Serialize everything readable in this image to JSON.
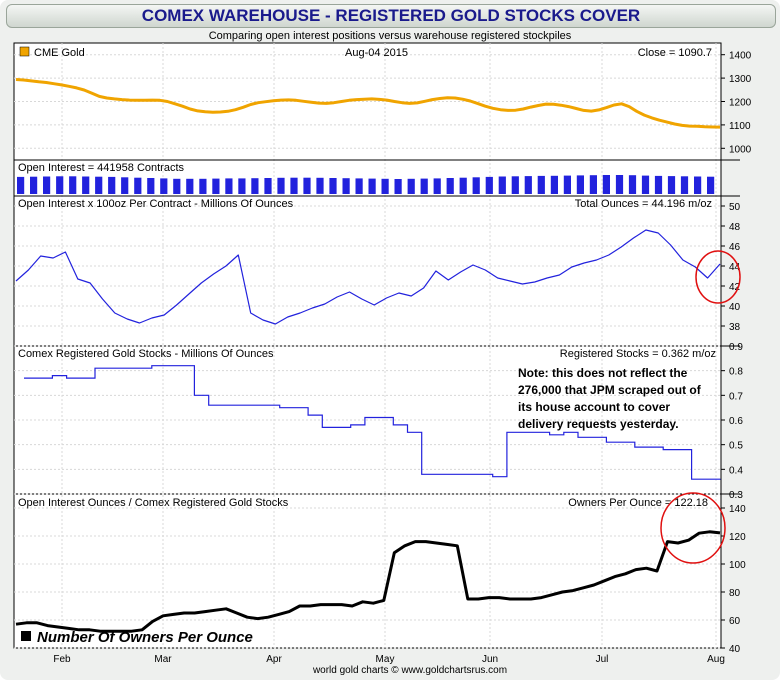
{
  "header": {
    "title": "COMEX WAREHOUSE - REGISTERED GOLD STOCKS COVER",
    "subtitle": "Comparing open interest positions versus warehouse registered stockpiles"
  },
  "footer": {
    "credit": "world gold charts © www.goldchartsrus.com"
  },
  "colors": {
    "gold": "#f0a400",
    "blue": "#2222dd",
    "black": "#000000",
    "annotation_circle": "#e01010"
  },
  "chart_data": [
    {
      "type": "line",
      "legend": "CME Gold",
      "date_label": "Aug-04  2015",
      "close_label": "Close = 1090.7",
      "ylim": [
        950,
        1450
      ],
      "yticks": [
        "1000",
        "1100",
        "1200",
        "1300",
        "1400"
      ],
      "series": [
        {
          "name": "CME Gold",
          "values": [
            1294,
            1292,
            1288,
            1284,
            1281,
            1276,
            1271,
            1265,
            1258,
            1249,
            1236,
            1222,
            1215,
            1211,
            1208,
            1206,
            1205,
            1205,
            1206,
            1205,
            1200,
            1190,
            1180,
            1168,
            1160,
            1156,
            1154,
            1155,
            1158,
            1165,
            1175,
            1187,
            1195,
            1199,
            1203,
            1206,
            1207,
            1205,
            1201,
            1197,
            1193,
            1192,
            1195,
            1200,
            1205,
            1208,
            1210,
            1211,
            1209,
            1206,
            1200,
            1195,
            1192,
            1194,
            1201,
            1208,
            1213,
            1216,
            1215,
            1210,
            1202,
            1191,
            1180,
            1171,
            1165,
            1162,
            1163,
            1168,
            1176,
            1183,
            1189,
            1188,
            1184,
            1178,
            1170,
            1162,
            1159,
            1164,
            1174,
            1185,
            1190,
            1178,
            1158,
            1142,
            1130,
            1120,
            1112,
            1104,
            1098,
            1095,
            1094,
            1092,
            1091,
            1090.7
          ]
        }
      ],
      "x_axis": "shared"
    },
    {
      "type": "bar",
      "label": "Open Interest = 441958 Contracts",
      "value": 441958,
      "bar_levels": [
        0.9,
        0.91,
        0.92,
        0.93,
        0.93,
        0.92,
        0.91,
        0.9,
        0.88,
        0.86,
        0.84,
        0.82,
        0.8,
        0.8,
        0.8,
        0.81,
        0.82,
        0.82,
        0.83,
        0.84,
        0.85,
        0.86,
        0.86,
        0.85,
        0.84,
        0.83,
        0.82,
        0.81,
        0.8,
        0.79,
        0.8,
        0.81,
        0.82,
        0.84,
        0.86,
        0.88,
        0.9,
        0.92,
        0.93,
        0.94,
        0.95,
        0.96,
        0.97,
        0.98,
        0.99,
        1.0,
        1.0,
        0.99,
        0.97,
        0.95,
        0.94,
        0.93,
        0.92,
        0.91
      ]
    },
    {
      "type": "line",
      "title": "Open Interest x 100oz Per Contract - Millions Of Ounces",
      "value_label": "Total Ounces = 44.196 m/oz",
      "ylim": [
        36,
        51
      ],
      "yticks": [
        "38",
        "40",
        "42",
        "44",
        "46",
        "48",
        "50"
      ],
      "series": [
        {
          "name": "Open Interest x 100oz",
          "values": [
            42.5,
            43.6,
            45.0,
            44.8,
            45.4,
            42.7,
            42.3,
            40.7,
            39.3,
            38.7,
            38.3,
            38.8,
            39.1,
            40.1,
            41.2,
            42.3,
            43.2,
            44.0,
            45.1,
            39.3,
            38.6,
            38.2,
            38.9,
            39.3,
            39.8,
            40.2,
            40.9,
            41.4,
            40.7,
            40.1,
            40.8,
            41.3,
            41.0,
            41.8,
            43.5,
            42.6,
            43.4,
            44.1,
            43.6,
            42.8,
            42.5,
            42.2,
            42.4,
            42.8,
            43.1,
            43.9,
            44.3,
            44.6,
            45.1,
            45.9,
            46.8,
            47.6,
            47.3,
            46.1,
            44.6,
            43.9,
            42.8,
            44.196
          ]
        }
      ]
    },
    {
      "type": "line",
      "title": "Comex Registered Gold Stocks - Millions Of Ounces",
      "value_label": "Registered Stocks = 0.362 m/oz",
      "ylim": [
        0.3,
        0.9
      ],
      "yticks": [
        "0.3",
        "0.4",
        "0.5",
        "0.6",
        "0.7",
        "0.8",
        "0.9"
      ],
      "annotation": "Note: this does not reflect the 276,000 that JPM scraped out of its house account to cover delivery requests yesterday.",
      "series": [
        {
          "name": "Registered Stocks",
          "values": [
            0.77,
            0.77,
            0.78,
            0.77,
            0.77,
            0.81,
            0.81,
            0.81,
            0.81,
            0.82,
            0.82,
            0.82,
            0.7,
            0.66,
            0.66,
            0.66,
            0.66,
            0.66,
            0.65,
            0.65,
            0.62,
            0.57,
            0.57,
            0.58,
            0.61,
            0.61,
            0.58,
            0.55,
            0.38,
            0.38,
            0.38,
            0.38,
            0.38,
            0.37,
            0.55,
            0.55,
            0.55,
            0.54,
            0.55,
            0.53,
            0.53,
            0.51,
            0.51,
            0.49,
            0.49,
            0.48,
            0.48,
            0.36,
            0.36,
            0.362
          ]
        }
      ]
    },
    {
      "type": "line",
      "title": "Open Interest Ounces / Comex Registered Gold Stocks",
      "value_label": "Owners Per Ounce = 122.18",
      "legend": "Number Of Owners Per Ounce",
      "ylim": [
        40,
        150
      ],
      "yticks": [
        "40",
        "60",
        "80",
        "100",
        "120",
        "140"
      ],
      "series": [
        {
          "name": "Number Of Owners Per Ounce",
          "values": [
            57,
            58,
            58,
            56,
            55,
            54,
            53,
            53,
            52,
            52,
            52,
            52,
            53,
            59,
            63,
            64,
            65,
            65,
            66,
            67,
            68,
            65,
            62,
            61,
            62,
            64,
            66,
            70,
            70,
            71,
            71,
            71,
            70,
            73,
            72,
            74,
            108,
            113,
            116,
            116,
            115,
            114,
            113,
            75,
            75,
            76,
            76,
            75,
            75,
            75,
            76,
            78,
            80,
            81,
            83,
            85,
            88,
            91,
            93,
            96,
            97,
            95,
            116,
            115,
            117,
            122,
            123,
            122.18
          ]
        }
      ]
    }
  ],
  "x_axis": {
    "labels": [
      "Feb",
      "Mar",
      "Apr",
      "May",
      "Jun",
      "Jul",
      "Aug"
    ]
  }
}
